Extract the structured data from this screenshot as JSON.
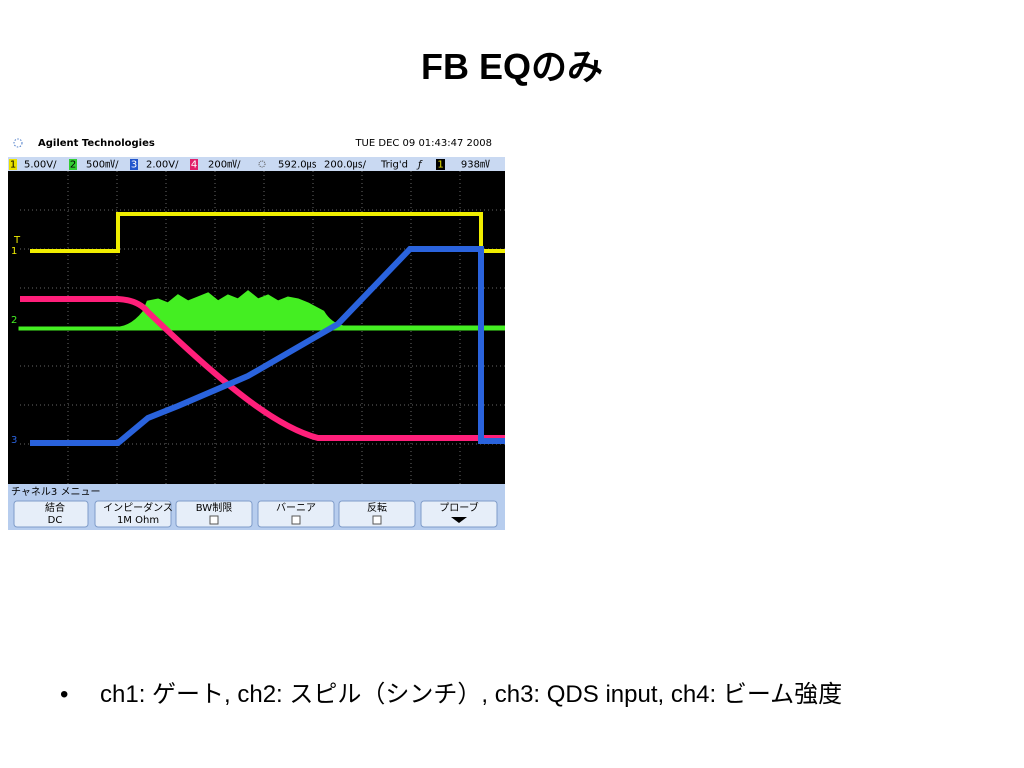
{
  "title": "FB EQのみ",
  "scope": {
    "brand": "Agilent Technologies",
    "timestamp": "TUE DEC 09 01:43:47 2008",
    "status": {
      "ch1_label": "1",
      "ch1_scale": "5.00V/",
      "ch2_label": "2",
      "ch2_scale": "500㎷/",
      "ch3_label": "3",
      "ch3_scale": "2.00V/",
      "ch4_label": "4",
      "ch4_scale": "200㎷/",
      "delay": "592.0㎲",
      "timebase": "200.0㎲/",
      "trigger_state": "Trig'd",
      "trigger_source": "1",
      "trigger_level": "938㎷"
    },
    "markers": {
      "trigger": "T",
      "ch1": "1",
      "ch2": "2",
      "ch3": "3"
    },
    "menu_title": "チャネル3 メニュー",
    "buttons": [
      {
        "label": "結合",
        "value": "DC"
      },
      {
        "label": "インピーダンス",
        "value": "1M Ohm"
      },
      {
        "label": "BW制限"
      },
      {
        "label": "バーニア"
      },
      {
        "label": "反転"
      },
      {
        "label": "プローブ"
      }
    ]
  },
  "bullets": [
    "ch1: ゲート, ch2: スピル（シンチ）, ch3: QDS input, ch4: ビーム強度"
  ]
}
